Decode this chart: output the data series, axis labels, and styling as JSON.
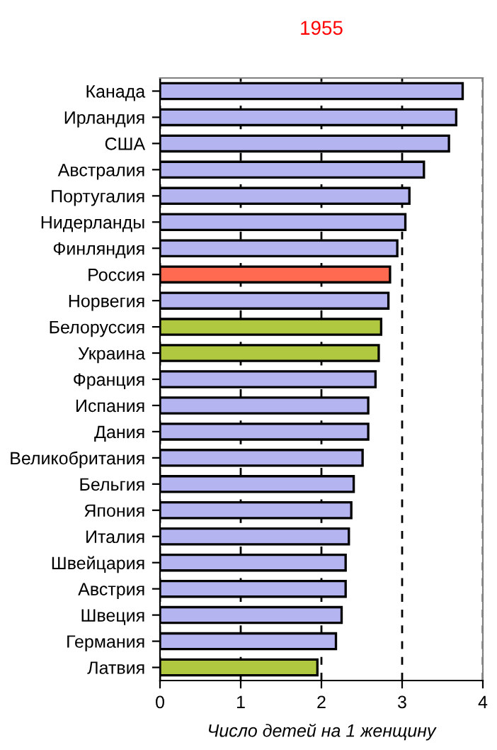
{
  "chart_data": {
    "type": "bar",
    "orientation": "horizontal",
    "title": "1955",
    "xlabel": "Число детей на 1 женщину",
    "categories": [
      "Канада",
      "Ирландия",
      "США",
      "Австралия",
      "Португалия",
      "Нидерланды",
      "Финляндия",
      "Россия",
      "Норвегия",
      "Белоруссия",
      "Украина",
      "Франция",
      "Испания",
      "Дания",
      "Великобритания",
      "Бельгия",
      "Япония",
      "Италия",
      "Швейцария",
      "Австрия",
      "Швеция",
      "Германия",
      "Латвия"
    ],
    "values": [
      3.75,
      3.67,
      3.58,
      3.27,
      3.09,
      3.04,
      2.94,
      2.85,
      2.83,
      2.74,
      2.71,
      2.67,
      2.58,
      2.58,
      2.51,
      2.4,
      2.37,
      2.34,
      2.3,
      2.3,
      2.25,
      2.18,
      1.95
    ],
    "colors": [
      "#b4b4f0",
      "#b4b4f0",
      "#b4b4f0",
      "#b4b4f0",
      "#b4b4f0",
      "#b4b4f0",
      "#b4b4f0",
      "#ff6a50",
      "#b4b4f0",
      "#b0c840",
      "#b0c840",
      "#b4b4f0",
      "#b4b4f0",
      "#b4b4f0",
      "#b4b4f0",
      "#b4b4f0",
      "#b4b4f0",
      "#b4b4f0",
      "#b4b4f0",
      "#b4b4f0",
      "#b4b4f0",
      "#b4b4f0",
      "#b0c840"
    ],
    "xlim": [
      0,
      4
    ],
    "xticks": [
      0,
      1,
      2,
      3,
      4
    ],
    "grid": "x"
  }
}
